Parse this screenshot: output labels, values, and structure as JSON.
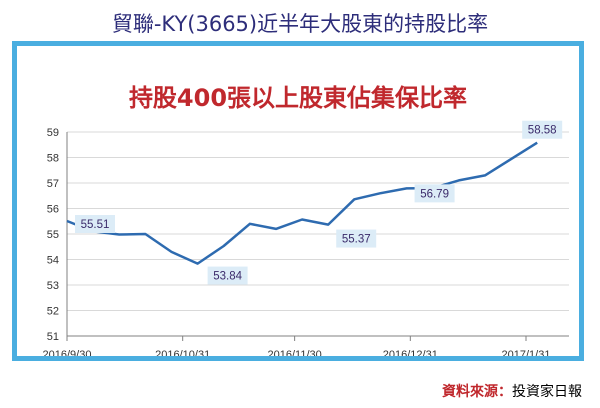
{
  "header": {
    "title": "貿聯-KY(3665)近半年大股東的持股比率"
  },
  "source": {
    "label": "資料來源：",
    "name": "投資家日報"
  },
  "colors": {
    "line": "#2e6bb0",
    "frame": "#4aaee0",
    "title": "#c0282d",
    "top_title": "#2d2d7a",
    "label_box": "#dcecf7"
  },
  "chart_data": {
    "type": "line",
    "title": "持股400張以上股東佔集保比率",
    "xlabel": "",
    "ylabel": "",
    "ylim": [
      51,
      59
    ],
    "yticks": [
      51,
      52,
      53,
      54,
      55,
      56,
      57,
      58,
      59
    ],
    "xticks": [
      "2016/9/30",
      "2016/10/31",
      "2016/11/30",
      "2016/12/31",
      "2017/1/31"
    ],
    "grid": "horizontal",
    "series": [
      {
        "name": "",
        "x": [
          "2016/9/30",
          "2016/10/7",
          "2016/10/14",
          "2016/10/21",
          "2016/10/28",
          "2016/11/4",
          "2016/11/11",
          "2016/11/18",
          "2016/11/25",
          "2016/12/2",
          "2016/12/9",
          "2016/12/16",
          "2016/12/23",
          "2016/12/30",
          "2017/1/6",
          "2017/1/13",
          "2017/1/20",
          "2017/2/3"
        ],
        "values": [
          55.51,
          55.1,
          54.98,
          55.0,
          54.3,
          53.84,
          54.53,
          55.4,
          55.2,
          55.57,
          55.37,
          56.36,
          56.6,
          56.79,
          56.8,
          57.1,
          57.3,
          58.58
        ]
      }
    ],
    "data_labels": [
      {
        "index": 0,
        "text": "55.51"
      },
      {
        "index": 5,
        "text": "53.84"
      },
      {
        "index": 10,
        "text": "55.37"
      },
      {
        "index": 13,
        "text": "56.79"
      },
      {
        "index": 17,
        "text": "58.58"
      }
    ]
  }
}
